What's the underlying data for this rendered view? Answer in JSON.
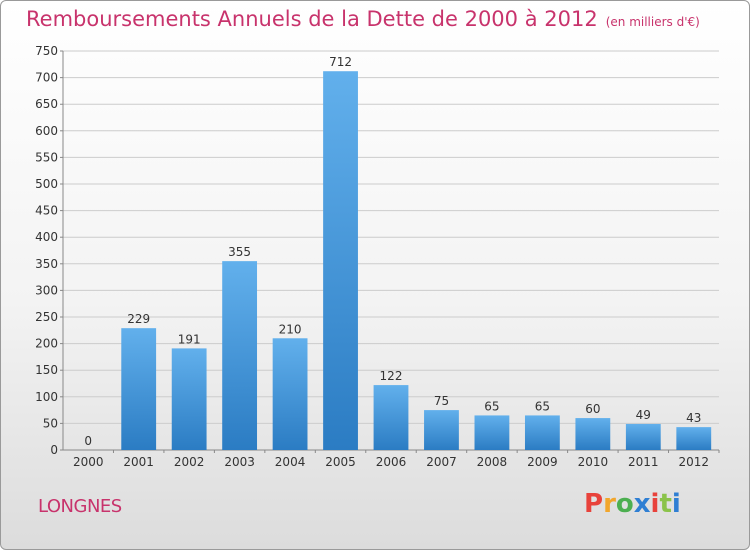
{
  "chart_data": {
    "type": "bar",
    "title": "Remboursements Annuels de la Dette de 2000 à 2012",
    "unit": "(en milliers d'€)",
    "categories": [
      "2000",
      "2001",
      "2002",
      "2003",
      "2004",
      "2005",
      "2006",
      "2007",
      "2008",
      "2009",
      "2010",
      "2011",
      "2012"
    ],
    "values": [
      0,
      229,
      191,
      355,
      210,
      712,
      122,
      75,
      65,
      65,
      60,
      49,
      43
    ],
    "ylim": [
      0,
      750
    ],
    "yticks": [
      0,
      50,
      100,
      150,
      200,
      250,
      300,
      350,
      400,
      450,
      500,
      550,
      600,
      650,
      700,
      750
    ],
    "grid": true,
    "bar_color": "#3d8fd6"
  },
  "footer": {
    "town": "LONGNES",
    "logo_text": "Proxiti",
    "logo_colors": [
      "#e8423b",
      "#f2a62c",
      "#4caf50",
      "#2f7fd3",
      "#e8423b",
      "#8bc34a",
      "#2f7fd3"
    ]
  },
  "colors": {
    "title": "#c8336c",
    "grid": "#cccccc",
    "axis_text": "#333333"
  }
}
